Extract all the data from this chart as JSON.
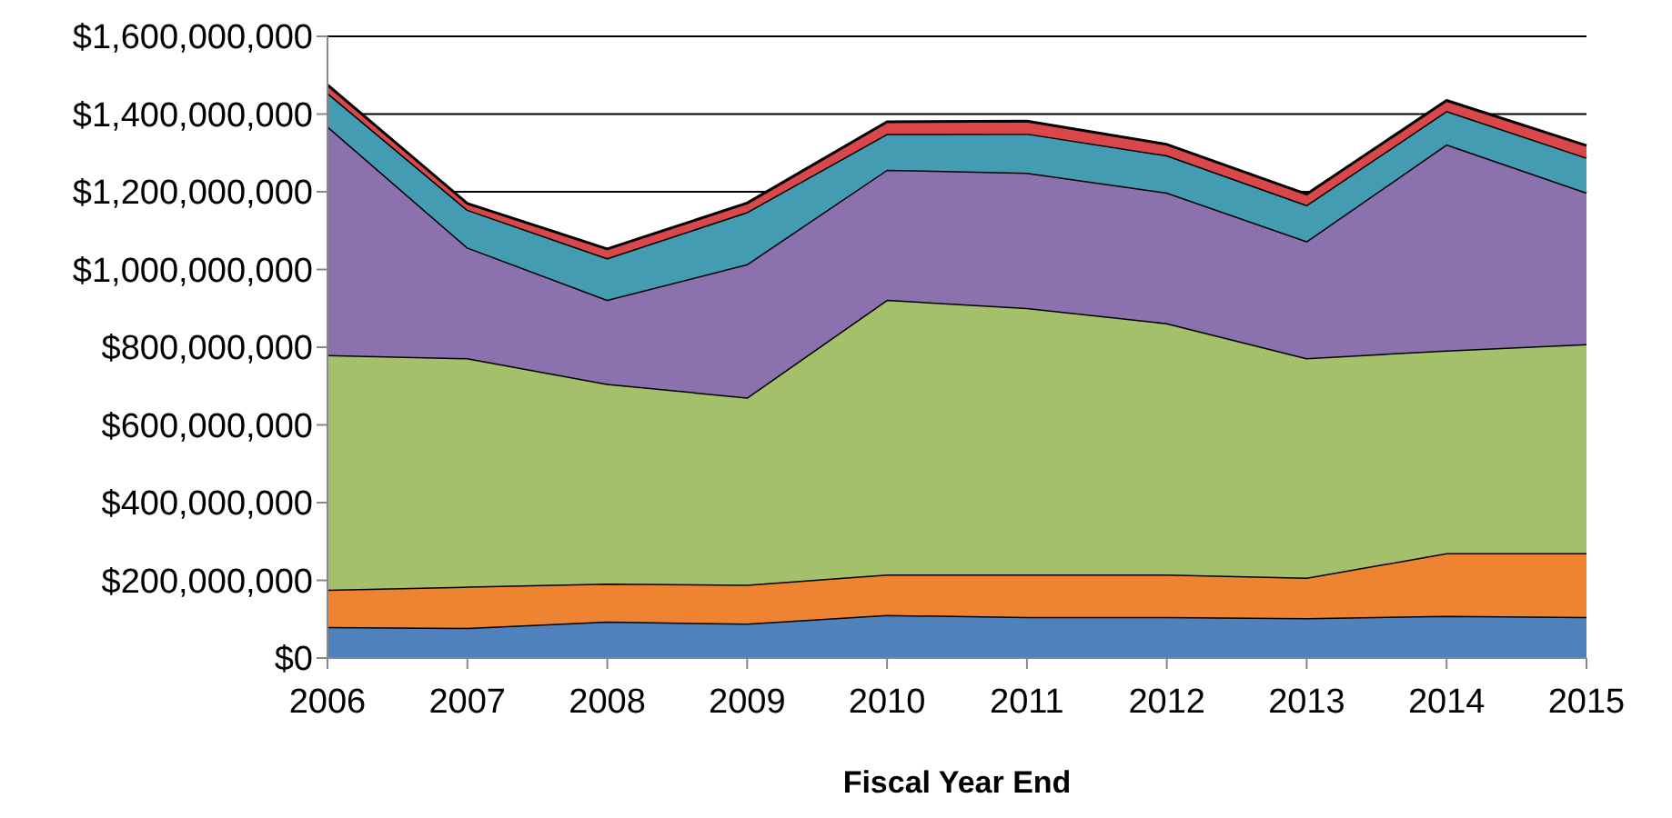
{
  "chart_data": {
    "type": "area",
    "stacked": true,
    "xlabel": "Fiscal Year End",
    "categories": [
      "2006",
      "2007",
      "2008",
      "2009",
      "2010",
      "2011",
      "2012",
      "2013",
      "2014",
      "2015"
    ],
    "series": [
      {
        "color": "#4f81bd",
        "values": [
          80000000,
          78000000,
          94000000,
          89000000,
          111000000,
          106000000,
          106000000,
          103000000,
          109000000,
          106000000
        ]
      },
      {
        "color": "#ee8432",
        "values": [
          96000000,
          106000000,
          98000000,
          100000000,
          104000000,
          109000000,
          109000000,
          104000000,
          161000000,
          164000000
        ]
      },
      {
        "color": "#a4c06a",
        "values": [
          604000000,
          588000000,
          514000000,
          482000000,
          707000000,
          686000000,
          647000000,
          565000000,
          522000000,
          538000000
        ]
      },
      {
        "color": "#8b72ae",
        "values": [
          589000000,
          285000000,
          216000000,
          343000000,
          335000000,
          348000000,
          336000000,
          301000000,
          530000000,
          390000000
        ]
      },
      {
        "color": "#449cb3",
        "values": [
          86000000,
          97000000,
          107000000,
          134000000,
          92000000,
          101000000,
          96000000,
          93000000,
          86000000,
          90000000
        ]
      },
      {
        "color": "#d9474a",
        "values": [
          20000000,
          16000000,
          24000000,
          23000000,
          31000000,
          32000000,
          28000000,
          28000000,
          27000000,
          31000000
        ]
      }
    ],
    "ylim": [
      0,
      1600000000
    ],
    "yticks": [
      {
        "value": 0,
        "label": "$0"
      },
      {
        "value": 200000000,
        "label": "$200,000,000"
      },
      {
        "value": 400000000,
        "label": "$400,000,000"
      },
      {
        "value": 600000000,
        "label": "$600,000,000"
      },
      {
        "value": 800000000,
        "label": "$800,000,000"
      },
      {
        "value": 1000000000,
        "label": "$1,000,000,000"
      },
      {
        "value": 1200000000,
        "label": "$1,200,000,000"
      },
      {
        "value": 1400000000,
        "label": "$1,400,000,000"
      },
      {
        "value": 1600000000,
        "label": "$1,600,000,000"
      }
    ],
    "grid": "y"
  }
}
